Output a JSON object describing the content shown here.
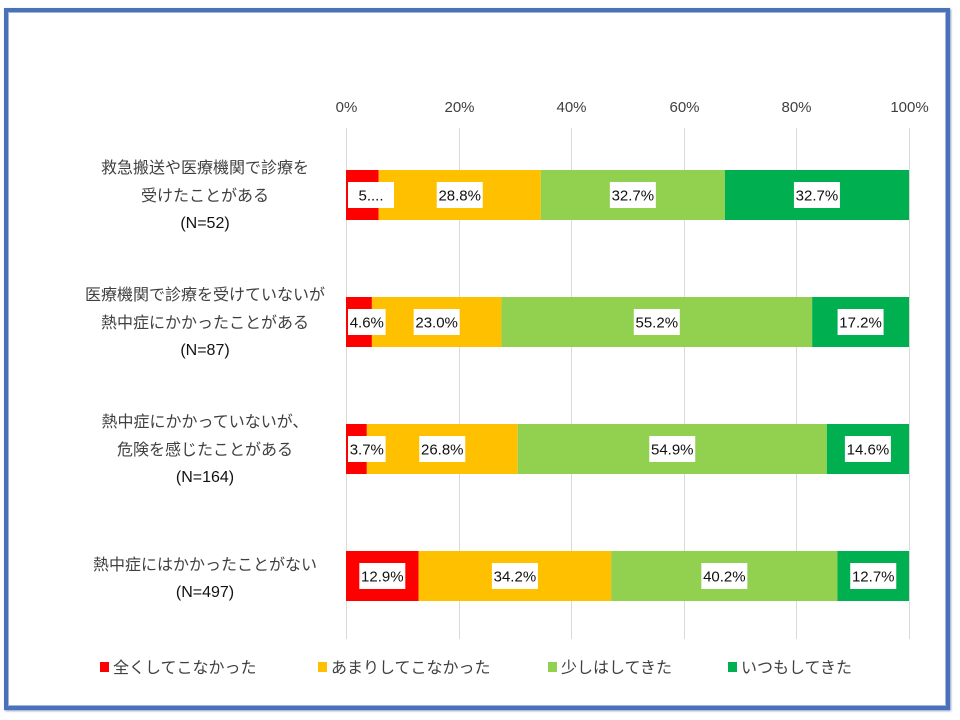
{
  "chart_data": {
    "type": "bar",
    "orientation": "horizontal",
    "stacked": "percent",
    "title": "",
    "xlabel": "",
    "ylabel": "",
    "xlim": [
      0,
      100
    ],
    "x_ticks": [
      "0%",
      "20%",
      "40%",
      "60%",
      "80%",
      "100%"
    ],
    "x_tick_values": [
      0,
      20,
      40,
      60,
      80,
      100
    ],
    "grid": true,
    "legend_position": "bottom",
    "categories": [
      {
        "lines": [
          "救急搬送や医療機関で診療を",
          "受けたことがある"
        ],
        "n": "(N=52)"
      },
      {
        "lines": [
          "医療機関で診療を受けていないが",
          "熱中症にかかったことがある"
        ],
        "n": "(N=87)"
      },
      {
        "lines": [
          "熱中症にかかっていないが、",
          "危険を感じたことがある"
        ],
        "n": "(N=164)"
      },
      {
        "lines": [
          "熱中症にはかかったことがない"
        ],
        "n": "(N=497)"
      }
    ],
    "series": [
      {
        "name": "全くしてこなかった",
        "color": "#ff0000",
        "values": [
          5.8,
          4.6,
          3.7,
          12.9
        ],
        "labels": [
          "5....",
          "4.6%",
          "3.7%",
          "12.9%"
        ]
      },
      {
        "name": "あまりしてこなかった",
        "color": "#ffc000",
        "values": [
          28.8,
          23.0,
          26.8,
          34.2
        ],
        "labels": [
          "28.8%",
          "23.0%",
          "26.8%",
          "34.2%"
        ]
      },
      {
        "name": "少しはしてきた",
        "color": "#92d050",
        "values": [
          32.7,
          55.2,
          54.9,
          40.2
        ],
        "labels": [
          "32.7%",
          "55.2%",
          "54.9%",
          "40.2%"
        ]
      },
      {
        "name": "いつもしてきた",
        "color": "#00b050",
        "values": [
          32.7,
          17.2,
          14.6,
          12.7
        ],
        "labels": [
          "32.7%",
          "17.2%",
          "14.6%",
          "12.7%"
        ]
      }
    ]
  },
  "colors": {
    "frame_border": "#4a72b8",
    "gridline": "#d9d9d9",
    "text": "#404040"
  }
}
